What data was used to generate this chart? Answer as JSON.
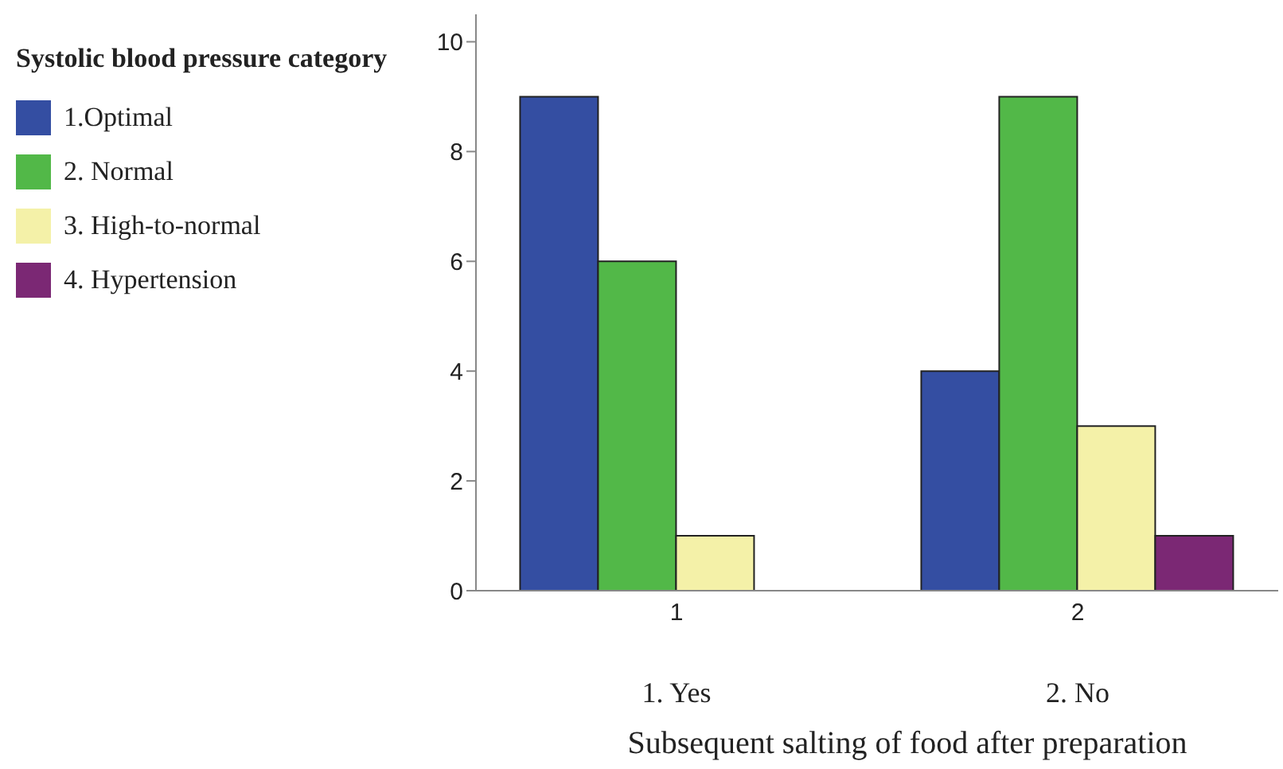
{
  "chart_data": {
    "type": "bar",
    "xlabel": "Subsequent salting of food after preparation",
    "legend_title": "Systolic blood pressure category",
    "categories": [
      "1",
      "2"
    ],
    "series": [
      {
        "name": "1.Optimal",
        "color": "#344ea2",
        "values": [
          9,
          4
        ]
      },
      {
        "name": "2. Normal",
        "color": "#52b848",
        "values": [
          6,
          9
        ]
      },
      {
        "name": "3. High-to-normal",
        "color": "#f4f1a8",
        "values": [
          1,
          3
        ]
      },
      {
        "name": "4. Hypertension",
        "color": "#7b2874",
        "values": [
          0,
          1
        ]
      }
    ],
    "annotations": [
      "1. Yes",
      "2. No"
    ],
    "ylim": [
      0,
      10.5
    ],
    "yticks": [
      0,
      2,
      4,
      6,
      8,
      10
    ],
    "grid": false,
    "legend": "left"
  }
}
